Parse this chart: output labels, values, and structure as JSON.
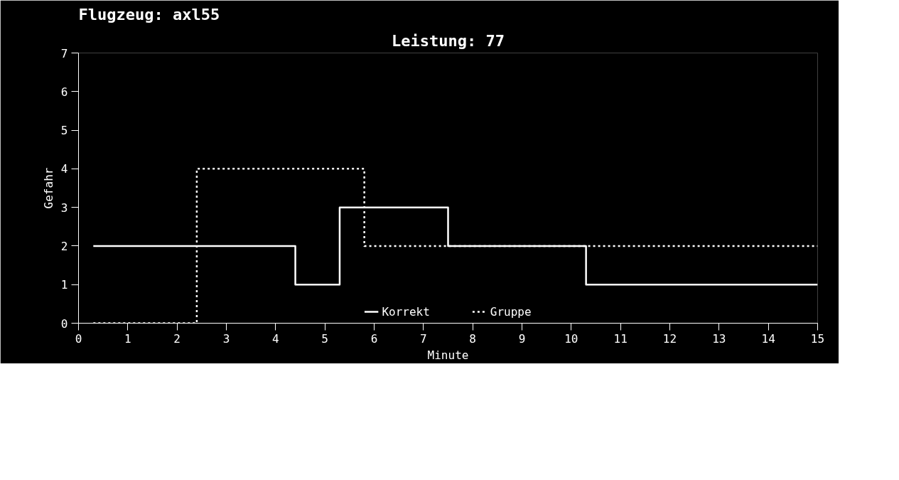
{
  "chart_data": {
    "type": "step",
    "title": "Flugzeug: axl55",
    "subtitle": "Leistung: 77",
    "xlabel": "Minute",
    "ylabel": "Gefahr",
    "xlim": [
      0,
      15
    ],
    "xticks": [
      0,
      1,
      2,
      3,
      4,
      5,
      6,
      7,
      8,
      9,
      10,
      11,
      12,
      13,
      14,
      15
    ],
    "ylim": [
      0,
      7
    ],
    "yticks": [
      0,
      1,
      2,
      3,
      4,
      5,
      6,
      7
    ],
    "grid": false,
    "legend": "bottom",
    "series": [
      {
        "name": "Korrekt",
        "color": "#ffffff",
        "line_style": "solid",
        "x": [
          0.3,
          4.4,
          5.3,
          7.5,
          10.3,
          15
        ],
        "values": [
          2,
          1,
          3,
          2,
          1,
          1
        ]
      },
      {
        "name": "Gruppe",
        "color": "#ffffff",
        "line_style": "dotted",
        "x": [
          0.3,
          2.4,
          5.8,
          15
        ],
        "values": [
          0,
          4,
          2,
          2
        ]
      }
    ]
  }
}
